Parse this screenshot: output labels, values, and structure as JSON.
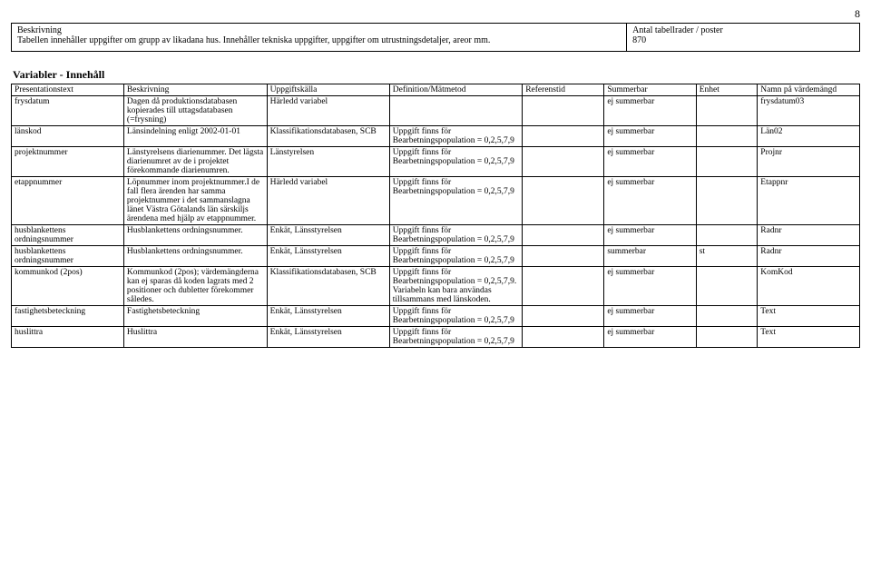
{
  "page_number": "8",
  "top": {
    "left_label": "Beskrivning",
    "left_text": "Tabellen innehåller uppgifter om grupp av likadana hus. Innehåller tekniska uppgifter, uppgifter om utrustningsdetaljer, areor mm.",
    "right_label": "Antal tabellrader / poster",
    "right_value": "870"
  },
  "vars_title": "Variabler - Innehåll",
  "columns": [
    "Presentationstext",
    "Beskrivning",
    "Uppgiftskälla",
    "Definition/Mätmetod",
    "Referenstid",
    "Summerbar",
    "Enhet",
    "Namn på värdemängd"
  ],
  "rows": [
    {
      "pres": "frysdatum",
      "besk": "Dagen då produktionsdatabasen kopierades till uttagsdatabasen (=frysning)",
      "upp": "Härledd variabel",
      "def": "",
      "ref": "",
      "sum": "ej summerbar",
      "enh": "",
      "namn": "frysdatum03"
    },
    {
      "pres": "länskod",
      "besk": "Länsindelning enligt 2002-01-01",
      "upp": "Klassifikationsdatabasen, SCB",
      "def": "Uppgift finns för Bearbetningspopulation = 0,2,5,7,9",
      "ref": "",
      "sum": "ej summerbar",
      "enh": "",
      "namn": "Län02"
    },
    {
      "pres": "projektnummer",
      "besk": "Länstyrelsens diarienummer. Det lägsta diarienumret av de i projektet förekommande diarienumren.",
      "upp": "Länstyrelsen",
      "def": "Uppgift finns för Bearbetningspopulation = 0,2,5,7,9",
      "ref": "",
      "sum": "ej summerbar",
      "enh": "",
      "namn": "Projnr"
    },
    {
      "pres": "etappnummer",
      "besk": "Löpnummer inom projektnummer.I de fall flera ärenden har samma projektnummer i det sammanslagna länet Västra Götalands län särskiljs  ärendena med hjälp av etappnummer.",
      "upp": "Härledd variabel",
      "def": "Uppgift finns för Bearbetningspopulation = 0,2,5,7,9",
      "ref": "",
      "sum": "ej summerbar",
      "enh": "",
      "namn": "Etappnr"
    },
    {
      "pres": "husblankettens ordningsnummer",
      "besk": "Husblankettens ordningsnummer.",
      "upp": "Enkät, Länsstyrelsen",
      "def": "Uppgift finns för Bearbetningspopulation = 0,2,5,7,9",
      "ref": "",
      "sum": "ej summerbar",
      "enh": "",
      "namn": "Radnr"
    },
    {
      "pres": "husblankettens ordningsnummer",
      "besk": "Husblankettens ordningsnummer.",
      "upp": "Enkät, Länsstyrelsen",
      "def": "Uppgift finns för Bearbetningspopulation = 0,2,5,7,9",
      "ref": "",
      "sum": "summerbar",
      "enh": "st",
      "namn": "Radnr"
    },
    {
      "pres": "kommunkod (2pos)",
      "besk": "Kommunkod (2pos); värdemängderna kan ej sparas då koden lagrats med 2 positioner och dubletter förekommer således.",
      "upp": "Klassifikationsdatabasen, SCB",
      "def": "Uppgift finns för Bearbetningspopulation = 0,2,5,7,9. Variabeln kan bara användas tillsammans med länskoden.",
      "ref": "",
      "sum": "ej summerbar",
      "enh": "",
      "namn": "KomKod"
    },
    {
      "pres": "fastighetsbeteckning",
      "besk": "Fastighetsbeteckning",
      "upp": "Enkät, Länsstyrelsen",
      "def": "Uppgift finns för Bearbetningspopulation = 0,2,5,7,9",
      "ref": "",
      "sum": "ej summerbar",
      "enh": "",
      "namn": "Text"
    },
    {
      "pres": "huslittra",
      "besk": "Huslittra",
      "upp": "Enkät, Länsstyrelsen",
      "def": "Uppgift finns för Bearbetningspopulation = 0,2,5,7,9",
      "ref": "",
      "sum": "ej summerbar",
      "enh": "",
      "namn": "Text"
    }
  ]
}
